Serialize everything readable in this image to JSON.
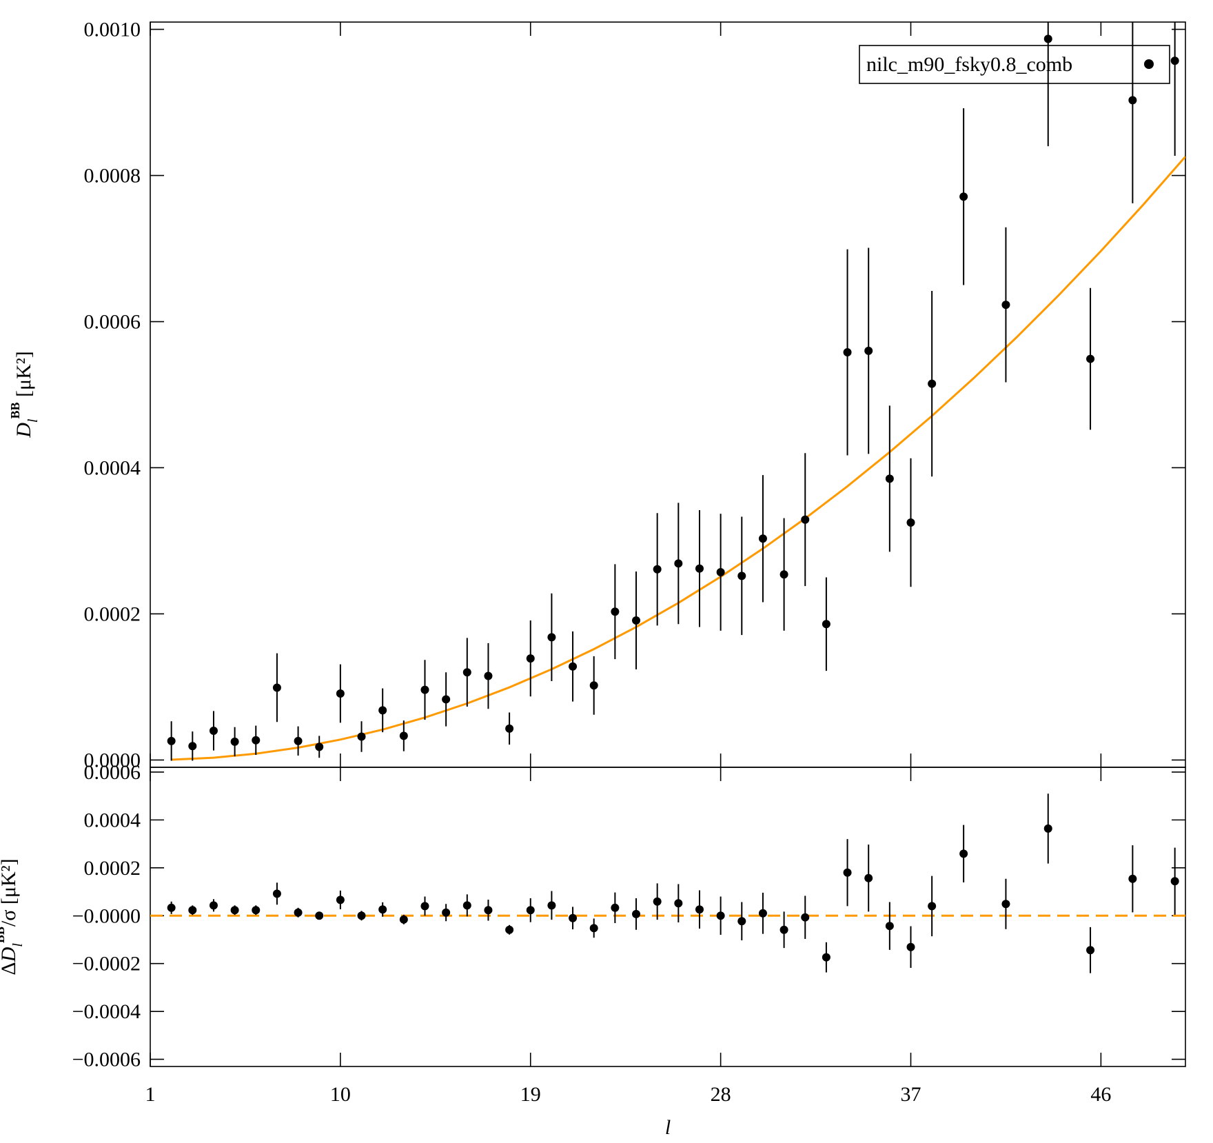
{
  "chart_data": [
    {
      "type": "scatter",
      "ylabel": {
        "main": "D",
        "sub": "l",
        "sup": "BB",
        "unit": " [μK²]"
      },
      "ylim": [
        -1e-05,
        0.00101
      ],
      "yticks": [
        {
          "value": 0,
          "label": "0.0000"
        },
        0.0002,
        0.0004,
        0.0006,
        0.0008,
        {
          "value": 0.001,
          "label": "0.0010"
        }
      ],
      "legend": "upper right",
      "series": [
        {
          "name": "nilc_m90_fsky0.8_comb",
          "color": "#000000",
          "x": [
            2,
            3,
            4,
            5,
            6,
            7,
            8,
            9,
            10,
            11,
            12,
            13,
            14,
            15,
            16,
            17,
            18,
            19,
            20,
            21,
            22,
            23,
            24,
            25,
            26,
            27,
            28,
            29,
            30,
            31,
            32,
            33,
            34,
            35,
            36,
            37,
            38,
            39.5,
            41.5,
            43.5,
            45.5,
            47.5,
            49.5
          ],
          "values": [
            2.6e-05,
            1.9e-05,
            4e-05,
            2.5e-05,
            2.7e-05,
            9.9e-05,
            2.6e-05,
            1.8e-05,
            9.1e-05,
            3.2e-05,
            6.8e-05,
            3.3e-05,
            9.6e-05,
            8.3e-05,
            0.00012,
            0.000115,
            4.3e-05,
            0.000139,
            0.000168,
            0.000128,
            0.000102,
            0.000203,
            0.000191,
            0.000261,
            0.000269,
            0.000262,
            0.000257,
            0.000252,
            0.000303,
            0.000254,
            0.000329,
            0.000186,
            0.000558,
            0.00056,
            0.000385,
            0.000325,
            0.000515,
            0.000771,
            0.000623,
            0.000987,
            0.000549,
            0.000903,
            0.000957
          ],
          "errors": [
            2.7e-05,
            2e-05,
            2.7e-05,
            2e-05,
            2e-05,
            4.7e-05,
            2e-05,
            1.5e-05,
            4e-05,
            2.1e-05,
            3e-05,
            2.1e-05,
            4.1e-05,
            3.7e-05,
            4.7e-05,
            4.5e-05,
            2.2e-05,
            5.2e-05,
            6e-05,
            4.8e-05,
            4e-05,
            6.5e-05,
            6.7e-05,
            7.7e-05,
            8.3e-05,
            8e-05,
            8e-05,
            8.1e-05,
            8.7e-05,
            7.7e-05,
            9.1e-05,
            6.4e-05,
            0.000141,
            0.000141,
            0.0001,
            8.8e-05,
            0.000127,
            0.000121,
            0.000106,
            0.000147,
            9.7e-05,
            0.000141,
            0.00013
          ]
        }
      ],
      "model": {
        "color": "#ff9900",
        "x": [
          2,
          4,
          6,
          8,
          10,
          12,
          14,
          16,
          18,
          20,
          22,
          24,
          26,
          28,
          30,
          32,
          34,
          36,
          38,
          40,
          42,
          44,
          46,
          48,
          50
        ],
        "values": [
          3.4e-07,
          3.1e-06,
          8.6e-06,
          1.69e-05,
          2.79e-05,
          4.16e-05,
          5.81e-05,
          7.74e-05,
          9.94e-05,
          0.0001242,
          0.0001517,
          0.000182,
          0.000215,
          0.0002508,
          0.0002893,
          0.0003306,
          0.0003746,
          0.0004214,
          0.0004709,
          0.0005232,
          0.0005783,
          0.0006361,
          0.0006966,
          0.0007599,
          0.0008259
        ]
      }
    },
    {
      "type": "scatter",
      "xlabel": "l",
      "xlim": [
        1,
        50
      ],
      "xticks": [
        1,
        10,
        19,
        28,
        37,
        46
      ],
      "ylabel": {
        "pre": "Δ",
        "main": "D",
        "sub": "l",
        "sup": "BB",
        "unit": "/σ [μK²]"
      },
      "ylim": [
        -0.00063,
        0.00062
      ],
      "yticks": [
        {
          "value": -0.0006,
          "label": "−0.0006"
        },
        {
          "value": -0.0004,
          "label": "−0.0004"
        },
        {
          "value": -0.0002,
          "label": "−0.0002"
        },
        {
          "value": 0,
          "label": "−0.0000"
        },
        0.0002,
        0.0004,
        0.0006
      ],
      "reference_line": {
        "value": 0,
        "color": "#ff9900",
        "style": "dashed"
      },
      "series": [
        {
          "color": "#000000",
          "x": [
            2,
            3,
            4,
            5,
            6,
            7,
            8,
            9,
            10,
            11,
            12,
            13,
            14,
            15,
            16,
            17,
            18,
            19,
            20,
            21,
            22,
            23,
            24,
            25,
            26,
            27,
            28,
            29,
            30,
            31,
            32,
            33,
            34,
            35,
            36,
            37,
            38,
            39.5,
            41.5,
            43.5,
            45.5,
            47.5,
            49.5
          ],
          "values": [
            3.3e-05,
            2.3e-05,
            4.3e-05,
            2.3e-05,
            2.3e-05,
            9.2e-05,
            1.3e-05,
            0,
            6.6e-05,
            0,
            2.6e-05,
            -1.6e-05,
            4e-05,
            1.3e-05,
            4.3e-05,
            2.3e-05,
            -5.9e-05,
            2.3e-05,
            4.3e-05,
            -1e-05,
            -5.2e-05,
            3.3e-05,
            7e-06,
            5.9e-05,
            5.2e-05,
            2.6e-05,
            0,
            -2.3e-05,
            1e-05,
            -5.9e-05,
            -7e-06,
            -0.000174,
            0.00018,
            0.000157,
            -4.3e-05,
            -0.000131,
            4e-05,
            0.000259,
            4.9e-05,
            0.000364,
            -0.000144,
            0.000154,
            0.000144
          ],
          "errors": [
            2.6e-05,
            2e-05,
            2.6e-05,
            2e-05,
            2e-05,
            4.6e-05,
            2e-05,
            1.6e-05,
            3.9e-05,
            2e-05,
            3e-05,
            2e-05,
            4e-05,
            3.6e-05,
            4.6e-05,
            4.4e-05,
            2e-05,
            5e-05,
            6e-05,
            4.7e-05,
            4e-05,
            6.4e-05,
            6.6e-05,
            7.6e-05,
            8e-05,
            8e-05,
            8e-05,
            8e-05,
            8.6e-05,
            7.6e-05,
            9e-05,
            6.3e-05,
            0.00014,
            0.00014,
            0.0001,
            8.7e-05,
            0.000126,
            0.00012,
            0.000105,
            0.000146,
            9.6e-05,
            0.00014,
            0.00014
          ]
        }
      ]
    }
  ]
}
